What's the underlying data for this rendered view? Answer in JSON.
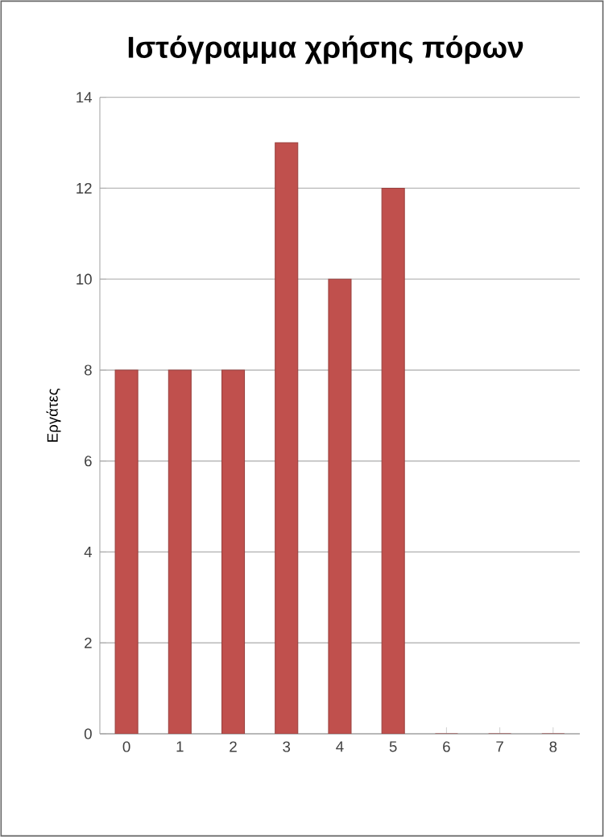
{
  "chart_data": {
    "type": "bar",
    "title": "Ιστόγραμμα χρήσης πόρων",
    "ylabel": "Εργάτες",
    "categories": [
      "0",
      "1",
      "2",
      "3",
      "4",
      "5",
      "6",
      "7",
      "8"
    ],
    "values": [
      8,
      8,
      8,
      13,
      10,
      12,
      0,
      0,
      0
    ],
    "color": "#c0504d",
    "ylim": [
      0,
      14
    ],
    "yticks": [
      0,
      2,
      4,
      6,
      8,
      10,
      12,
      14
    ],
    "grid": "y"
  }
}
